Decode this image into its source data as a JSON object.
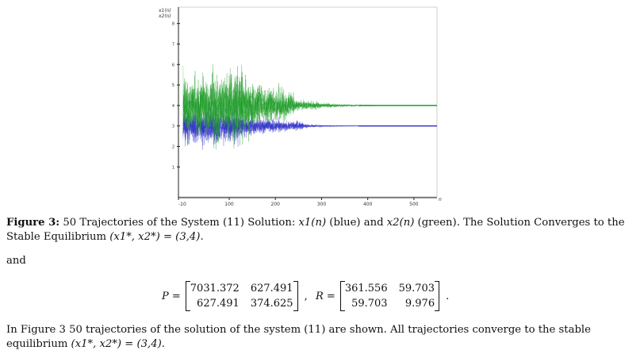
{
  "figure": {
    "y_axis_label_1": "x1(n)",
    "y_axis_label_2": "x2(n)",
    "x_axis_end_label": "n",
    "chart_data": {
      "type": "line",
      "xlim": [
        -10,
        550
      ],
      "ylim": [
        -0.5,
        8.8
      ],
      "x_ticks": [
        -10,
        100,
        200,
        300,
        400,
        500
      ],
      "x_tick_labels": [
        "-10",
        "100",
        "200",
        "300",
        "400",
        "500"
      ],
      "y_ticks": [
        1,
        2,
        3,
        4,
        5,
        6,
        7,
        8
      ],
      "y_tick_labels": [
        "1",
        "2",
        "3",
        "4",
        "5",
        "6",
        "7",
        "8"
      ],
      "grid": false,
      "trajectory_count": 50,
      "series": [
        {
          "label": "x1(n)",
          "color": "#2a2ac8",
          "equilibrium": 3
        },
        {
          "label": "x2(n)",
          "color": "#1f9d2a",
          "equilibrium": 4
        }
      ]
    }
  },
  "caption": {
    "figure_label": "Figure 3:",
    "text_1": " 50 Trajectories of the System (11) Solution: ",
    "x1": "x1(n)",
    "text_2": " (blue) and ",
    "x2": "x2(n)",
    "text_3": " (green). The Solution Converges to the Stable Equilibrium ",
    "equilibrium": "(x1*, x2*) = (3,4)."
  },
  "and_text": "and",
  "matrix_P": {
    "label": "P =",
    "rows": [
      [
        "7031.372",
        "627.491"
      ],
      [
        "627.491",
        "374.625"
      ]
    ],
    "punct": ","
  },
  "matrix_R": {
    "label": "R =",
    "rows": [
      [
        "361.556",
        "59.703"
      ],
      [
        "59.703",
        "9.976"
      ]
    ],
    "punct": "."
  },
  "paragraph": {
    "text_1": "In Figure 3 50 trajectories of the solution of the system (11) are shown. All trajectories converge to the stable equilibrium ",
    "equilibrium": "(x1*, x2*) = (3,4)."
  }
}
